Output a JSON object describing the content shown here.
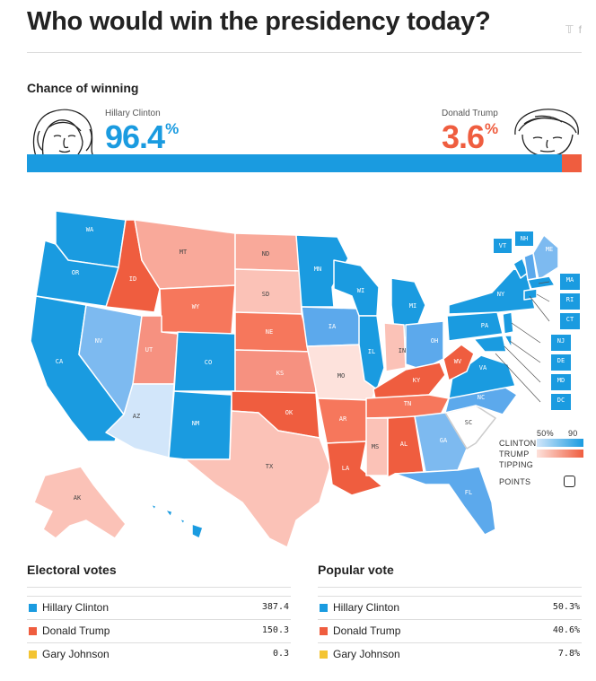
{
  "header": {
    "title": "Who would win the presidency today?",
    "share_icons": [
      "twitter-icon",
      "facebook-icon"
    ]
  },
  "chance": {
    "heading": "Chance of winning",
    "clinton": {
      "name": "Hillary Clinton",
      "value": "96.4",
      "unit": "%",
      "fraction": 0.964,
      "color": "#1a9be0"
    },
    "trump": {
      "name": "Donald Trump",
      "value": "3.6",
      "unit": "%",
      "fraction": 0.036,
      "color": "#ef5d3f"
    }
  },
  "legend": {
    "clinton_label": "CLINTON",
    "trump_label": "TRUMP",
    "tick_50": "50%",
    "tick_90": "90",
    "tipping_label": "TIPPING",
    "points_label": "POINTS"
  },
  "chart_data": [
    {
      "type": "map",
      "title": "",
      "state_labels": [
        "WA",
        "OR",
        "CA",
        "ID",
        "NV",
        "MT",
        "WY",
        "UT",
        "AZ",
        "CO",
        "NM",
        "ND",
        "SD",
        "NE",
        "KS",
        "OK",
        "TX",
        "MN",
        "IA",
        "MO",
        "AR",
        "LA",
        "WI",
        "IL",
        "MI",
        "IN",
        "OH",
        "KY",
        "TN",
        "MS",
        "AL",
        "GA",
        "FL",
        "SC",
        "NC",
        "VA",
        "WV",
        "PA",
        "NY",
        "VT",
        "NH",
        "ME",
        "MA",
        "RI",
        "CT",
        "NJ",
        "DE",
        "MD",
        "DC",
        "AK",
        "HI"
      ]
    },
    {
      "type": "table",
      "title": "Electoral votes",
      "rows": [
        {
          "name": "Hillary Clinton",
          "value": "387.4",
          "color": "#1a9be0"
        },
        {
          "name": "Donald Trump",
          "value": "150.3",
          "color": "#ef5d3f"
        },
        {
          "name": "Gary Johnson",
          "value": "0.3",
          "color": "#f3c432"
        }
      ]
    },
    {
      "type": "table",
      "title": "Popular vote",
      "rows": [
        {
          "name": "Hillary Clinton",
          "value": "50.3%",
          "color": "#1a9be0"
        },
        {
          "name": "Donald Trump",
          "value": "40.6%",
          "color": "#ef5d3f"
        },
        {
          "name": "Gary Johnson",
          "value": "7.8%",
          "color": "#f3c432"
        }
      ]
    }
  ]
}
